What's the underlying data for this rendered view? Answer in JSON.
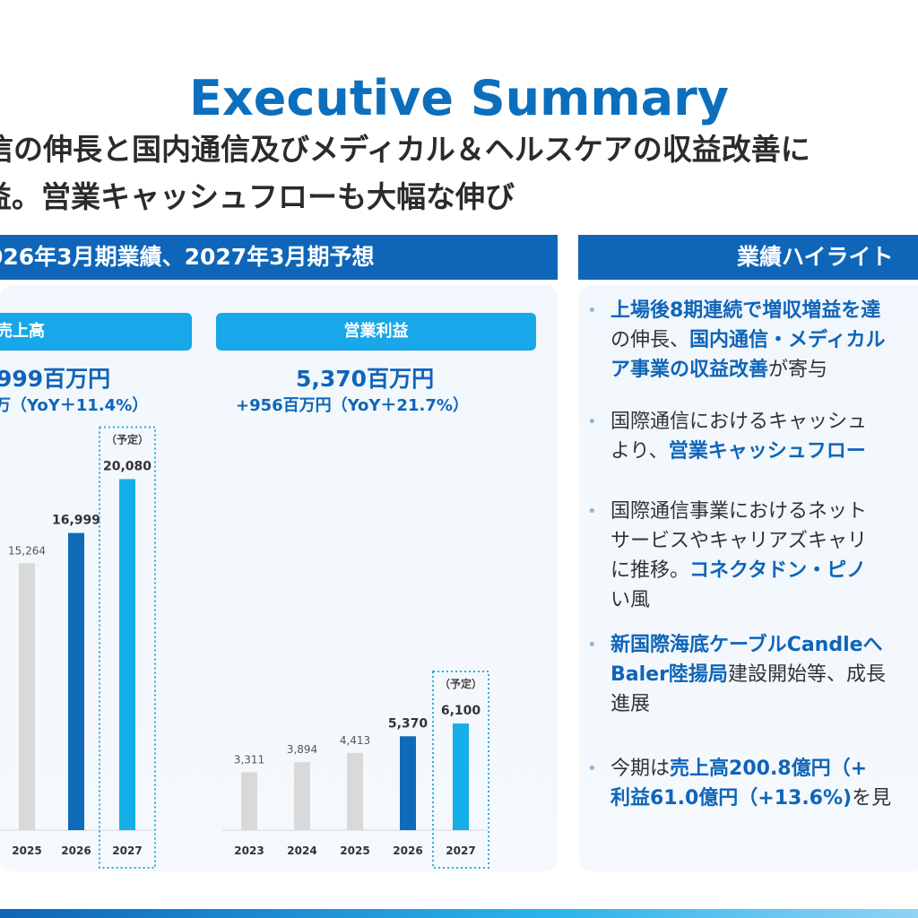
{
  "title": "Executive Summary",
  "subtitle_line1": "信の伸長と国内通信及びメディカル＆ヘルスケアの収益改善に",
  "subtitle_line2": "益。営業キャッシュフローも大幅な伸び",
  "left_section": {
    "header": "026年3月期業績、2027年3月期予想",
    "sales": {
      "label": "売上高",
      "value": "999百万円",
      "change": "万（YoY＋11.4%）"
    },
    "op": {
      "label": "営業利益",
      "value": "5,370百万円",
      "change": "+956百万円（YoY＋21.7%）"
    },
    "forecast_tag": "（予定）"
  },
  "right_section": {
    "header": "業績ハイライト"
  },
  "highlights": [
    {
      "lines": [
        [
          {
            "t": "上場後8期連続で増収増益を達",
            "b": true
          }
        ],
        [
          {
            "t": "の伸長、",
            "b": false
          },
          {
            "t": "国内通信・メディカル",
            "b": true
          }
        ],
        [
          {
            "t": "ア事業の収益改善",
            "b": true
          },
          {
            "t": "が寄与",
            "b": false
          }
        ]
      ]
    },
    {
      "lines": [
        [
          {
            "t": "国際通信におけるキャッシュ",
            "b": false
          }
        ],
        [
          {
            "t": "より、",
            "b": false
          },
          {
            "t": "営業キャッシュフロー",
            "b": true
          }
        ]
      ]
    },
    {
      "lines": [
        [
          {
            "t": "国際通信事業におけるネット",
            "b": false
          }
        ],
        [
          {
            "t": "サービスやキャリアズキャリ",
            "b": false
          }
        ],
        [
          {
            "t": "に推移。",
            "b": false
          },
          {
            "t": "コネクタドン・ピノ",
            "b": true
          }
        ],
        [
          {
            "t": "い風",
            "b": false
          }
        ]
      ]
    },
    {
      "lines": [
        [
          {
            "t": "新国際海底ケーブルCandleへ",
            "b": true
          }
        ],
        [
          {
            "t": "Baler陸揚局",
            "b": true
          },
          {
            "t": "建設開始等、成長",
            "b": false
          }
        ],
        [
          {
            "t": "進展",
            "b": false
          }
        ]
      ]
    },
    {
      "lines": [
        [
          {
            "t": "今期は",
            "b": false
          },
          {
            "t": "売上高200.8億円（+",
            "b": true
          }
        ],
        [
          {
            "t": "利益61.0億円（+13.6%)",
            "b": true
          },
          {
            "t": "を見",
            "b": false
          }
        ]
      ]
    }
  ],
  "colors": {
    "actual_past": "#d9d9d9",
    "actual_current": "#0f6bb8",
    "forecast": "#16aee8",
    "forecast_border": "#2aaed8"
  },
  "chart_data": [
    {
      "type": "bar",
      "title": "売上高",
      "categories": [
        "2025",
        "2026",
        "2027"
      ],
      "values": [
        15264,
        16999,
        20080
      ],
      "labels": [
        "15,264",
        "16,999",
        "20,080"
      ],
      "kinds": [
        "past",
        "current",
        "forecast"
      ]
    },
    {
      "type": "bar",
      "title": "営業利益",
      "categories": [
        "2023",
        "2024",
        "2025",
        "2026",
        "2027"
      ],
      "values": [
        3311,
        3894,
        4413,
        5370,
        6100
      ],
      "labels": [
        "3,311",
        "3,894",
        "4,413",
        "5,370",
        "6,100"
      ],
      "kinds": [
        "past",
        "past",
        "past",
        "current",
        "forecast"
      ]
    }
  ]
}
